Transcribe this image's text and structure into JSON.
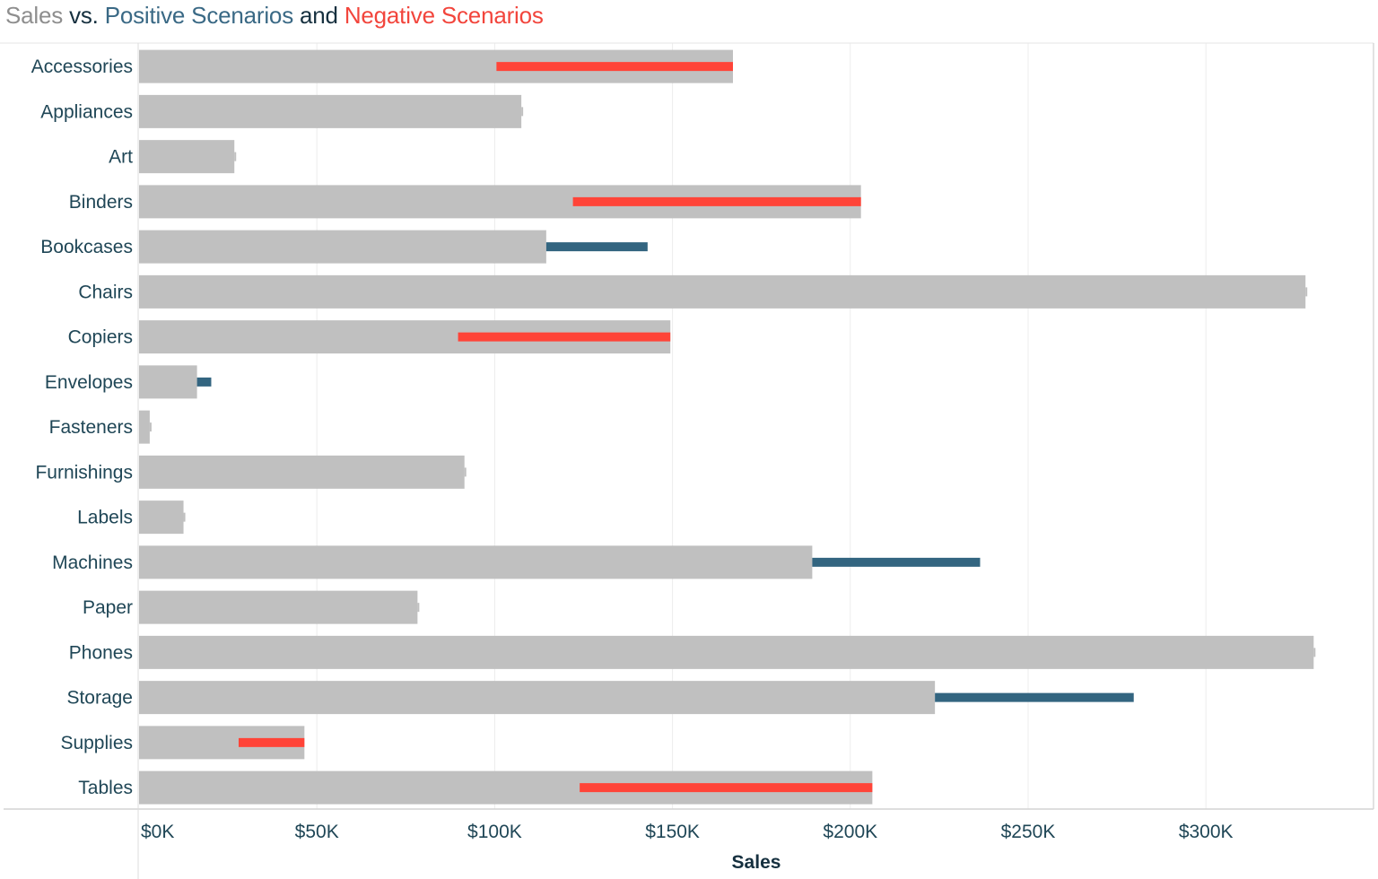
{
  "title": {
    "part_sales": "Sales",
    "part_vs": " vs. ",
    "part_positive": "Positive Scenarios",
    "part_and": " and ",
    "part_negative": "Negative Scenarios"
  },
  "colors": {
    "sales": "#c0c0c0",
    "positive": "#336580",
    "negative": "#ff4438",
    "grid": "#ececec",
    "axis": "#d4d4d4"
  },
  "chart_data": {
    "type": "bar",
    "orientation": "horizontal",
    "title": "Sales vs. Positive Scenarios and Negative Scenarios",
    "xlabel": "Sales",
    "ylabel": "",
    "xlim": [
      0,
      346000
    ],
    "x_ticks": [
      0,
      50000,
      100000,
      150000,
      200000,
      250000,
      300000
    ],
    "x_tick_labels": [
      "$0K",
      "$50K",
      "$100K",
      "$150K",
      "$200K",
      "$250K",
      "$300K"
    ],
    "grid": "vertical",
    "categories": [
      "Accessories",
      "Appliances",
      "Art",
      "Binders",
      "Bookcases",
      "Chairs",
      "Copiers",
      "Envelopes",
      "Fasteners",
      "Furnishings",
      "Labels",
      "Machines",
      "Paper",
      "Phones",
      "Storage",
      "Supplies",
      "Tables"
    ],
    "series": [
      {
        "name": "Sales",
        "values": [
          167000,
          107500,
          26800,
          203000,
          114500,
          328000,
          149400,
          16300,
          3000,
          91500,
          12500,
          189300,
          78300,
          330300,
          223800,
          46500,
          206200
        ]
      },
      {
        "name": "Positive Scenarios",
        "values": [
          null,
          null,
          null,
          null,
          143000,
          null,
          null,
          20300,
          null,
          null,
          null,
          236500,
          null,
          null,
          279700,
          null,
          null
        ]
      },
      {
        "name": "Negative Scenarios",
        "values": [
          100500,
          null,
          null,
          122000,
          null,
          null,
          89700,
          null,
          null,
          null,
          null,
          null,
          null,
          null,
          null,
          28000,
          123900
        ]
      }
    ]
  }
}
